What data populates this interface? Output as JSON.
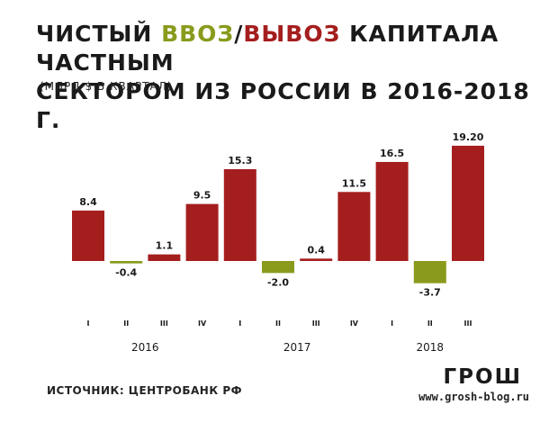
{
  "title": {
    "line1_a": "ЧИСТЫЙ ",
    "in_word": "ВВОЗ",
    "slash": "/",
    "out_word": "ВЫВОЗ",
    "line1_b": " КАПИТАЛА ЧАСТНЫМ",
    "line2": "СЕКТОРОМ ИЗ РОССИИ В 2016-2018 Г."
  },
  "subtitle": "(МЛРД $ В КВАРТАЛ)",
  "source": "ИСТОЧНИК: ЦЕНТРОБАНК РФ",
  "logo": "ГРОШ",
  "site": "www.grosh-blog.ru",
  "colors": {
    "outflow": "#a51e1e",
    "inflow": "#8a9a1c",
    "text": "#1a1a1a"
  },
  "chart_data": {
    "type": "bar",
    "categories": [
      "I",
      "II",
      "III",
      "IV",
      "I",
      "II",
      "III",
      "IV",
      "I",
      "II",
      "III"
    ],
    "values": [
      8.4,
      -0.4,
      1.1,
      9.5,
      15.3,
      -2.0,
      0.4,
      11.5,
      16.5,
      -3.7,
      19.2
    ],
    "value_labels": [
      "8.4",
      "-0.4",
      "1.1",
      "9.5",
      "15.3",
      "-2.0",
      "0.4",
      "11.5",
      "16.5",
      "-3.7",
      "19.20"
    ],
    "groups": [
      {
        "label": "2016",
        "count": 4
      },
      {
        "label": "2017",
        "count": 4
      },
      {
        "label": "2018",
        "count": 3
      }
    ],
    "title": "ЧИСТЫЙ ВВОЗ/ВЫВОЗ КАПИТАЛА ЧАСТНЫМ СЕКТОРОМ ИЗ РОССИИ В 2016-2018 Г.",
    "ylabel": "(МЛРД $ В КВАРТАЛ)",
    "ylim": [
      -4,
      20
    ],
    "grid": false
  }
}
